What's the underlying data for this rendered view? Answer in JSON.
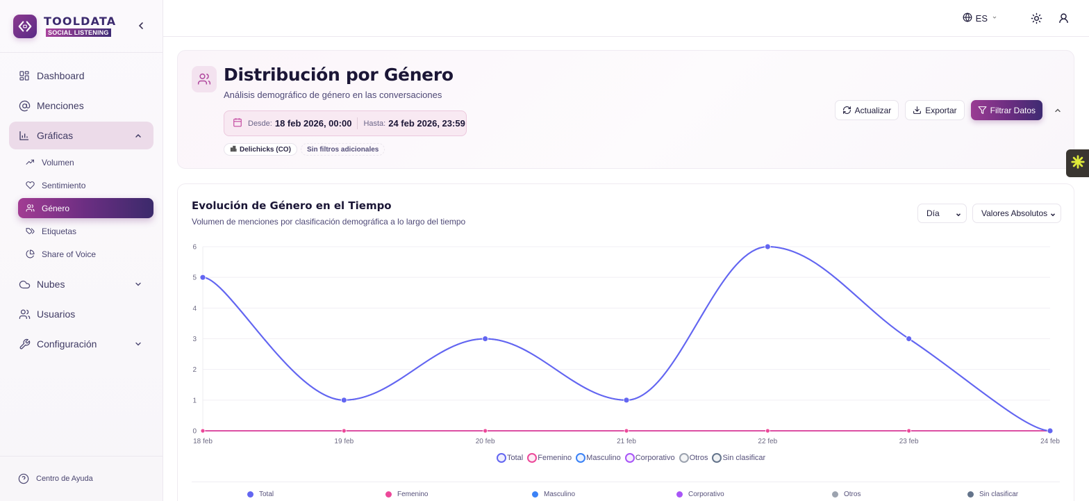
{
  "brand": {
    "title": "TOOLDATA",
    "subtitle": "SOCIAL LISTENING",
    "collapse_icon": "chevron-left-icon"
  },
  "sidebar": {
    "items": [
      {
        "label": "Dashboard",
        "icon": "grid-icon"
      },
      {
        "label": "Menciones",
        "icon": "at-sign-icon"
      },
      {
        "label": "Gráficas",
        "icon": "bar-chart-icon",
        "expanded": true
      },
      {
        "label": "Nubes",
        "icon": "cloud-icon",
        "expandable": true
      },
      {
        "label": "Usuarios",
        "icon": "users-icon"
      },
      {
        "label": "Configuración",
        "icon": "wrench-icon",
        "expandable": true
      }
    ],
    "sub_items": [
      {
        "label": "Volumen",
        "icon": "trending-up-icon"
      },
      {
        "label": "Sentimiento",
        "icon": "heart-icon"
      },
      {
        "label": "Género",
        "icon": "users-icon",
        "active": true
      },
      {
        "label": "Etiquetas",
        "icon": "tags-icon"
      },
      {
        "label": "Share of Voice",
        "icon": "pie-chart-icon"
      }
    ],
    "footer": {
      "label": "Centro de Ayuda",
      "icon": "help-circle-icon"
    }
  },
  "topbar": {
    "language": "ES",
    "icons": [
      "globe-icon",
      "sun-icon",
      "user-icon"
    ]
  },
  "header": {
    "title": "Distribución por Género",
    "subtitle": "Análisis demográfico de género en las conversaciones",
    "date_from_label": "Desde:",
    "date_from": "18 feb 2026, 00:00",
    "date_to_label": "Hasta:",
    "date_to": "24 feb 2026, 23:59",
    "brand_chip": "Delichicks (CO)",
    "filters_chip": "Sin filtros adicionales",
    "actions": {
      "refresh": "Actualizar",
      "export": "Exportar",
      "filter": "Filtrar Datos"
    }
  },
  "chart_card": {
    "title": "Evolución de Género en el Tiempo",
    "subtitle": "Volumen de menciones por clasificación demográfica a lo largo del tiempo",
    "period_select": "Día",
    "mode_select": "Valores Absolutos"
  },
  "colors": {
    "accent": "#9a3c93",
    "accent_dark": "#3e2b72",
    "total": "#6366f1",
    "femenino": "#ec4899",
    "masculino": "#3b82f6",
    "corporativo": "#a855f7",
    "otros": "#9ca3af",
    "sin_clasificar": "#64748b"
  },
  "chart_data": {
    "type": "line",
    "title": "Evolución de Género en el Tiempo",
    "subtitle": "Volumen de menciones por clasificación demográfica a lo largo del tiempo",
    "xlabel": "",
    "ylabel": "",
    "categories": [
      "18 feb",
      "19 feb",
      "20 feb",
      "21 feb",
      "22 feb",
      "23 feb",
      "24 feb"
    ],
    "yticks": [
      0,
      1,
      2,
      3,
      4,
      5,
      6
    ],
    "ylim": [
      0,
      6
    ],
    "grid": true,
    "legend_position": "bottom",
    "series": [
      {
        "name": "Total",
        "color": "#6366f1",
        "values": [
          5,
          1,
          3,
          1,
          6,
          3,
          0
        ]
      },
      {
        "name": "Femenino",
        "color": "#ec4899",
        "values": [
          0,
          0,
          0,
          0,
          0,
          0,
          0
        ]
      },
      {
        "name": "Masculino",
        "color": "#3b82f6",
        "values": [
          0,
          0,
          0,
          0,
          0,
          0,
          0
        ]
      },
      {
        "name": "Corporativo",
        "color": "#a855f7",
        "values": [
          0,
          0,
          0,
          0,
          0,
          0,
          0
        ]
      },
      {
        "name": "Otros",
        "color": "#9ca3af",
        "values": [
          0,
          0,
          0,
          0,
          0,
          0,
          0
        ]
      },
      {
        "name": "Sin clasificar",
        "color": "#64748b",
        "values": [
          0,
          0,
          0,
          0,
          0,
          0,
          0
        ]
      }
    ]
  }
}
